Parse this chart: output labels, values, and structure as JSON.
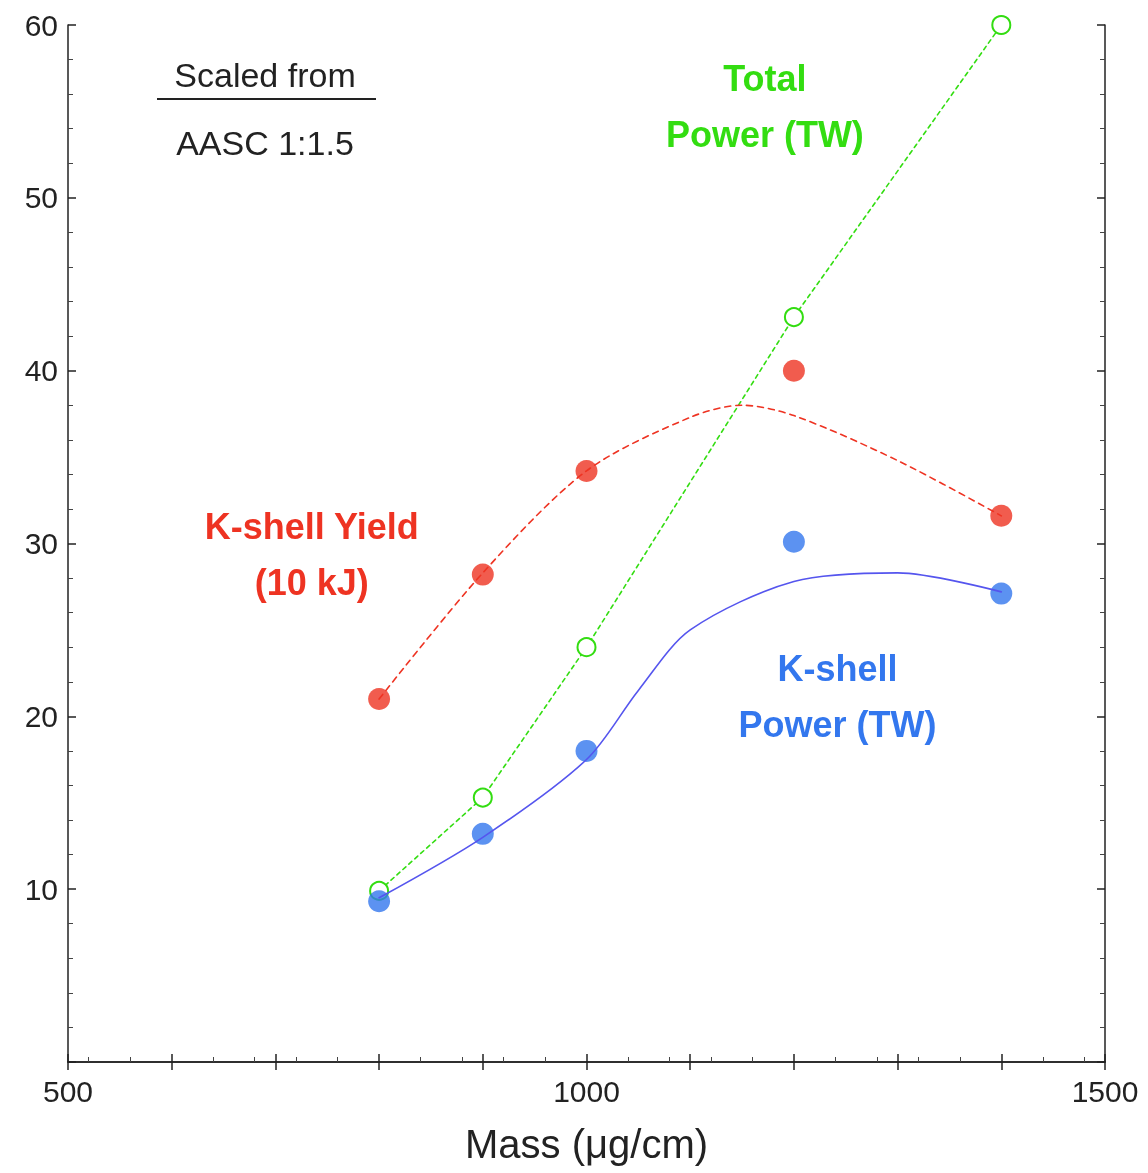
{
  "chart_data": {
    "type": "scatter",
    "xlabel": "Mass (μg/cm)",
    "xlim": [
      500,
      1500
    ],
    "xticks": [
      500,
      {
        "value": 600,
        "label": null
      },
      {
        "value": 700,
        "label": null
      },
      {
        "value": 800,
        "label": null
      },
      {
        "value": 900,
        "label": null
      },
      1000,
      {
        "value": 1100,
        "label": null
      },
      {
        "value": 1200,
        "label": null
      },
      {
        "value": 1300,
        "label": null
      },
      {
        "value": 1400,
        "label": null
      },
      1500
    ],
    "ylim": [
      0,
      60
    ],
    "yticks": [
      {
        "value": 0,
        "label": null
      },
      10,
      20,
      30,
      40,
      50,
      60
    ],
    "grid": false,
    "legend": false,
    "annotations": [
      "Scaled from",
      "AASC 1:1.5"
    ],
    "series": [
      {
        "name": "Total Power (TW)",
        "type": "line",
        "color": "#33dd11",
        "marker": "circle",
        "line_style": "dotted",
        "x": [
          800,
          900,
          1000,
          1200,
          1400
        ],
        "values": [
          9.9,
          15.3,
          24.0,
          43.1,
          60
        ]
      },
      {
        "name": "K-shell Yield (10 kJ)",
        "color": "#ee3322",
        "marker": "circle",
        "x": [
          800,
          900,
          1000,
          1200,
          1400
        ],
        "values": [
          21.0,
          28.2,
          34.2,
          40.0,
          31.6
        ]
      },
      {
        "type": "line",
        "color": "#ee3322",
        "marker": "none",
        "line_style": "dashed",
        "x": [
          800,
          900,
          1000,
          1100,
          1150,
          1200,
          1300,
          1400
        ],
        "values": [
          21.0,
          28.3,
          34.2,
          37.3,
          38.0,
          37.4,
          34.8,
          31.6
        ]
      },
      {
        "name": "K-shell Power (TW)",
        "color": "#3377ee",
        "marker": "circle",
        "x": [
          800,
          900,
          1000,
          1200,
          1400
        ],
        "values": [
          9.3,
          13.2,
          18.0,
          30.1,
          27.1
        ]
      },
      {
        "type": "line",
        "color": "#5555ee",
        "marker": "none",
        "line_style": "solid",
        "x": [
          800,
          900,
          1000,
          1050,
          1100,
          1200,
          1300,
          1400
        ],
        "values": [
          9.5,
          13.0,
          17.5,
          21.5,
          25.0,
          27.8,
          28.3,
          27.2
        ]
      }
    ]
  }
}
